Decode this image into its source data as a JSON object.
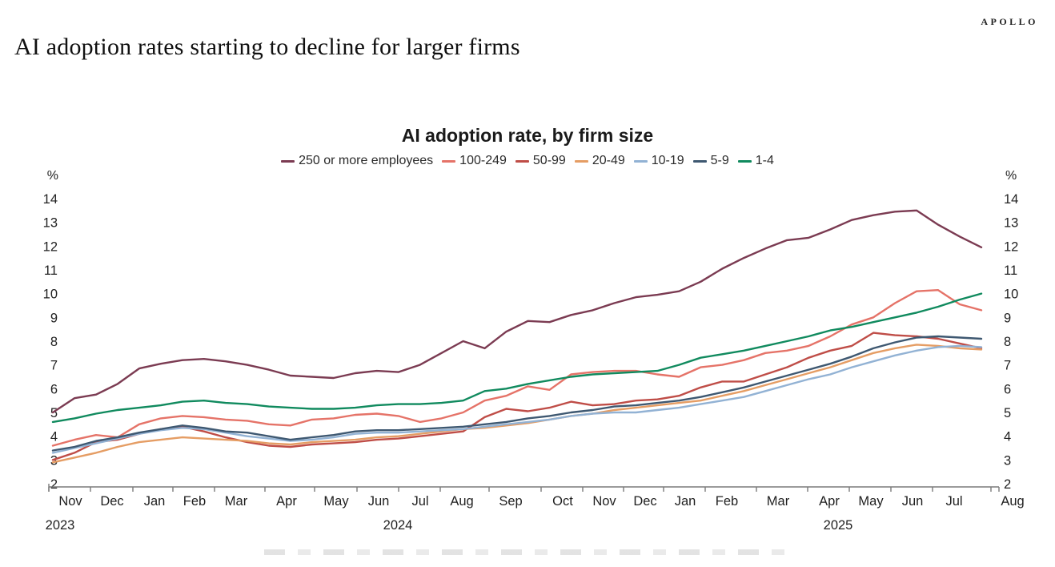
{
  "brand": "APOLLO",
  "page_title": "AI adoption rates starting to decline for larger firms",
  "chart_data": {
    "type": "line",
    "title": "AI adoption rate, by firm size",
    "y_unit": "%",
    "ylim": [
      2,
      14
    ],
    "y_ticks": [
      14,
      13,
      12,
      11,
      10,
      9,
      8,
      7,
      6,
      5,
      4,
      3,
      2
    ],
    "x_tick_labels": [
      "Nov",
      "Dec",
      "Jan",
      "Feb",
      "Mar",
      "Apr",
      "May",
      "Jun",
      "Jul",
      "Aug",
      "Sep",
      "Oct",
      "Nov",
      "Dec",
      "Jan",
      "Feb",
      "Mar",
      "Apr",
      "May",
      "Jun",
      "Jul",
      "Aug"
    ],
    "x_year_labels": [
      "2023",
      "2024",
      "2025"
    ],
    "x_start": "Nov 2023",
    "x_end": "Aug 2025",
    "grid": false,
    "legend_position": "top",
    "series": [
      {
        "name": "250 or more employees",
        "color": "#7b3b52",
        "values": [
          5.0,
          5.6,
          5.75,
          6.2,
          6.85,
          7.05,
          7.2,
          7.25,
          7.15,
          7.0,
          6.8,
          6.55,
          6.5,
          6.45,
          6.65,
          6.75,
          6.7,
          7.0,
          7.5,
          8.0,
          7.7,
          8.4,
          8.85,
          8.8,
          9.1,
          9.3,
          9.6,
          9.85,
          9.95,
          10.1,
          10.5,
          11.05,
          11.5,
          11.9,
          12.25,
          12.35,
          12.7,
          13.1,
          13.3,
          13.45,
          13.5,
          12.9,
          12.4,
          11.95
        ]
      },
      {
        "name": "100-249",
        "color": "#e57368",
        "values": [
          3.6,
          3.85,
          4.05,
          3.95,
          4.5,
          4.75,
          4.85,
          4.8,
          4.7,
          4.65,
          4.5,
          4.45,
          4.7,
          4.75,
          4.9,
          4.95,
          4.85,
          4.6,
          4.75,
          5.0,
          5.5,
          5.7,
          6.1,
          5.95,
          6.6,
          6.7,
          6.75,
          6.75,
          6.6,
          6.5,
          6.9,
          7.0,
          7.2,
          7.5,
          7.6,
          7.8,
          8.2,
          8.7,
          9.0,
          9.6,
          10.1,
          10.15,
          9.55,
          9.3
        ]
      },
      {
        "name": "50-99",
        "color": "#bf4d47",
        "values": [
          3.0,
          3.3,
          3.75,
          3.85,
          4.1,
          4.3,
          4.4,
          4.2,
          3.95,
          3.75,
          3.6,
          3.55,
          3.65,
          3.7,
          3.75,
          3.85,
          3.9,
          4.0,
          4.1,
          4.2,
          4.8,
          5.15,
          5.05,
          5.2,
          5.45,
          5.3,
          5.35,
          5.5,
          5.55,
          5.7,
          6.05,
          6.3,
          6.3,
          6.6,
          6.9,
          7.3,
          7.6,
          7.8,
          8.35,
          8.25,
          8.2,
          8.1,
          7.9,
          7.7
        ]
      },
      {
        "name": "20-49",
        "color": "#e59d64",
        "values": [
          2.9,
          3.1,
          3.3,
          3.55,
          3.75,
          3.85,
          3.95,
          3.9,
          3.85,
          3.8,
          3.7,
          3.65,
          3.75,
          3.8,
          3.85,
          3.95,
          4.0,
          4.1,
          4.2,
          4.3,
          4.35,
          4.45,
          4.55,
          4.7,
          4.85,
          4.95,
          5.1,
          5.2,
          5.3,
          5.4,
          5.5,
          5.7,
          5.9,
          6.15,
          6.4,
          6.65,
          6.9,
          7.2,
          7.5,
          7.7,
          7.85,
          7.8,
          7.7,
          7.65
        ]
      },
      {
        "name": "10-19",
        "color": "#92b2d4",
        "values": [
          3.3,
          3.5,
          3.7,
          3.9,
          4.1,
          4.25,
          4.35,
          4.3,
          4.15,
          4.0,
          3.9,
          3.8,
          3.85,
          3.95,
          4.1,
          4.15,
          4.15,
          4.2,
          4.25,
          4.3,
          4.4,
          4.5,
          4.6,
          4.7,
          4.85,
          4.95,
          5.0,
          5.0,
          5.1,
          5.2,
          5.35,
          5.5,
          5.65,
          5.9,
          6.15,
          6.4,
          6.6,
          6.9,
          7.15,
          7.4,
          7.6,
          7.75,
          7.8,
          7.75
        ]
      },
      {
        "name": "5-9",
        "color": "#3e5871",
        "values": [
          3.4,
          3.55,
          3.8,
          3.95,
          4.15,
          4.3,
          4.45,
          4.35,
          4.2,
          4.15,
          4.0,
          3.85,
          3.95,
          4.05,
          4.2,
          4.25,
          4.25,
          4.3,
          4.35,
          4.4,
          4.5,
          4.6,
          4.75,
          4.85,
          5.0,
          5.1,
          5.25,
          5.3,
          5.4,
          5.5,
          5.65,
          5.85,
          6.05,
          6.3,
          6.55,
          6.8,
          7.05,
          7.35,
          7.7,
          7.95,
          8.15,
          8.2,
          8.15,
          8.1
        ]
      },
      {
        "name": "1-4",
        "color": "#108a5e",
        "values": [
          4.6,
          4.75,
          4.95,
          5.1,
          5.2,
          5.3,
          5.45,
          5.5,
          5.4,
          5.35,
          5.25,
          5.2,
          5.15,
          5.15,
          5.2,
          5.3,
          5.35,
          5.35,
          5.4,
          5.5,
          5.9,
          6.0,
          6.2,
          6.35,
          6.5,
          6.6,
          6.65,
          6.7,
          6.75,
          7.0,
          7.3,
          7.45,
          7.6,
          7.8,
          8.0,
          8.2,
          8.45,
          8.6,
          8.8,
          9.0,
          9.2,
          9.45,
          9.75,
          10.0
        ]
      }
    ]
  }
}
